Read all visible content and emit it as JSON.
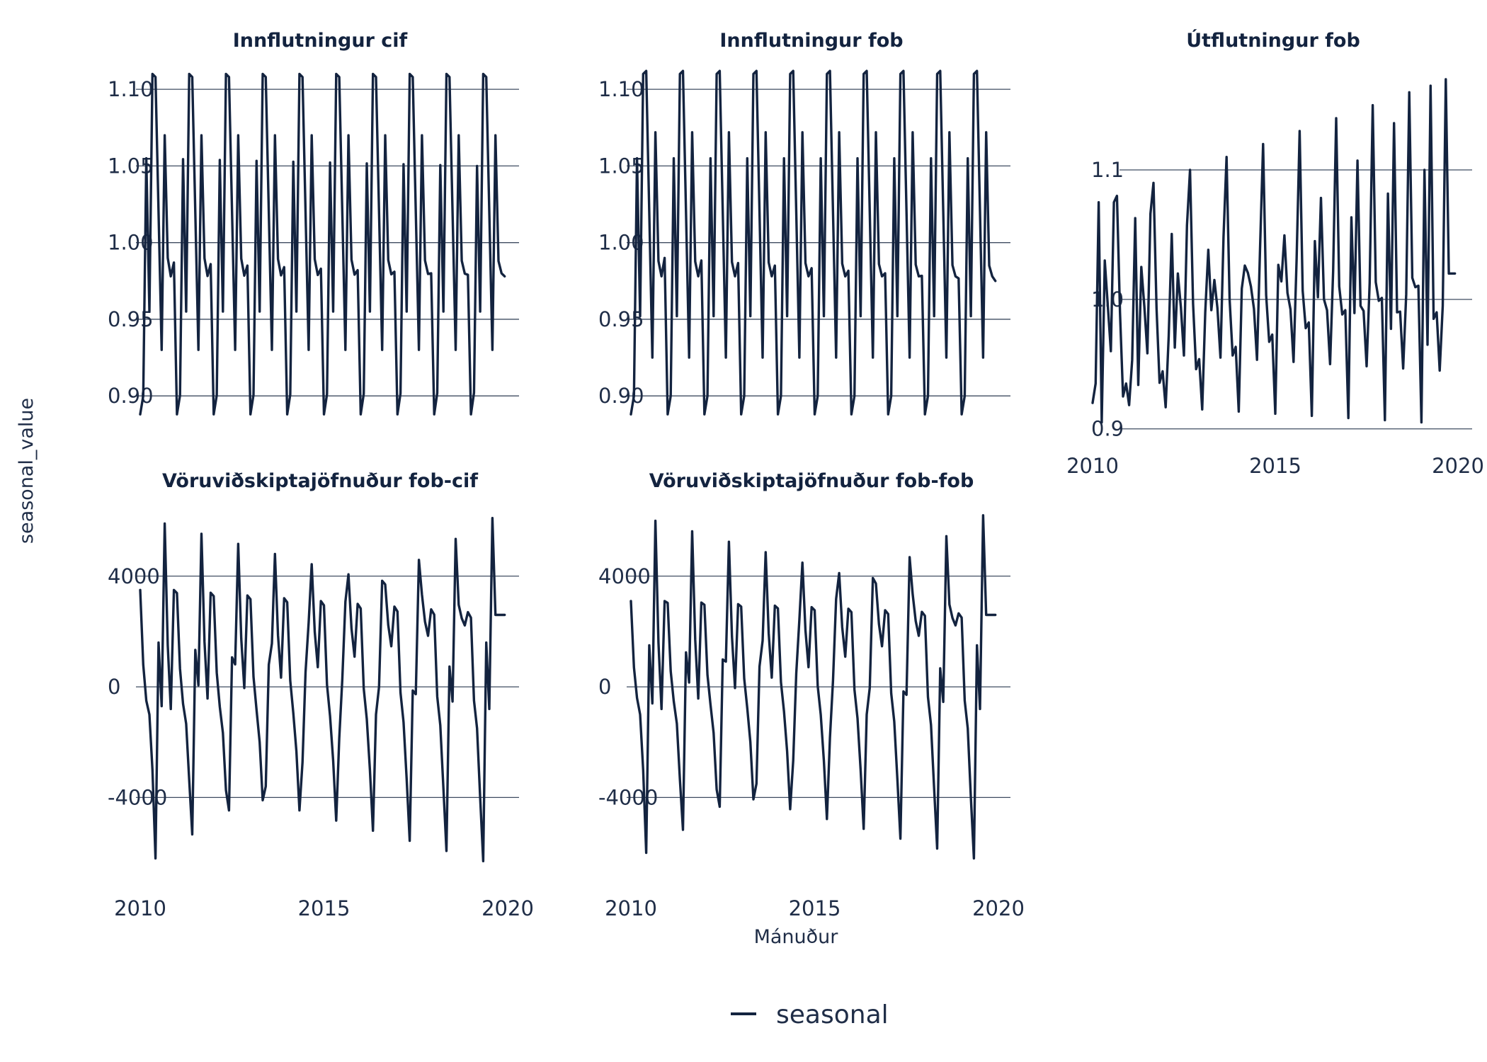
{
  "chart_data": {
    "type": "line",
    "xlabel": "Mánuður",
    "ylabel": "seasonal_value",
    "line_color": "#13233f",
    "legend": {
      "position": "bottom",
      "entries": [
        "seasonal"
      ]
    },
    "grid": "horizontal-major",
    "facets": [
      {
        "title": "Innflutningur cif",
        "xlim": [
          2010,
          2020
        ],
        "ylim": [
          0.883,
          1.113
        ],
        "yticks": [
          0.9,
          0.95,
          1.0,
          1.05,
          1.1
        ],
        "ytick_labels": [
          "0.90",
          "0.95",
          "1.00",
          "1.05",
          "1.10"
        ],
        "xticks": [
          2010,
          2015,
          2020
        ],
        "xtick_labels": [],
        "x_start": 2010.0,
        "x_step": 0.08333,
        "pattern_start": [
          0.888,
          0.9,
          1.055,
          0.955,
          1.11,
          1.108,
          1.02,
          0.93,
          1.07,
          0.99,
          0.978,
          0.987
        ],
        "pattern_end": [
          0.888,
          0.902,
          1.05,
          0.955,
          1.11,
          1.108,
          1.02,
          0.93,
          1.07,
          0.988,
          0.98,
          0.978
        ],
        "years": 10
      },
      {
        "title": "Innflutningur fob",
        "xlim": [
          2010,
          2020
        ],
        "ylim": [
          0.883,
          1.113
        ],
        "yticks": [
          0.9,
          0.95,
          1.0,
          1.05,
          1.1
        ],
        "ytick_labels": [
          "0.90",
          "0.95",
          "1.00",
          "1.05",
          "1.10"
        ],
        "xticks": [
          2010,
          2015,
          2020
        ],
        "xtick_labels": [],
        "x_start": 2010.0,
        "x_step": 0.08333,
        "pattern_start": [
          0.888,
          0.9,
          1.055,
          0.952,
          1.11,
          1.112,
          1.02,
          0.925,
          1.072,
          0.988,
          0.978,
          0.99
        ],
        "pattern_end": [
          0.888,
          0.9,
          1.055,
          0.952,
          1.11,
          1.112,
          1.02,
          0.925,
          1.072,
          0.985,
          0.978,
          0.975
        ],
        "years": 10
      },
      {
        "title": "Útflutningur fob",
        "xlim": [
          2010,
          2020
        ],
        "ylim": [
          0.89,
          1.17
        ],
        "yticks": [
          0.9,
          1.0,
          1.1
        ],
        "ytick_labels": [
          "0.9",
          "1.0",
          "1.1"
        ],
        "xticks": [
          2010,
          2015,
          2020
        ],
        "xtick_labels": [
          "2010",
          "2015",
          "2020"
        ],
        "x_start": 2010.0,
        "x_step": 0.08333,
        "pattern_start": [
          0.92,
          0.935,
          1.075,
          0.905,
          1.03,
          0.995,
          0.96,
          1.075,
          1.08,
          0.99,
          0.925,
          0.935
        ],
        "pattern_end": [
          0.905,
          1.1,
          0.965,
          1.165,
          0.985,
          0.99,
          0.945,
          0.995,
          1.17,
          1.02,
          1.02,
          1.02
        ],
        "years": 10
      },
      {
        "title": "Vöruviðskiptajöfnuður fob-cif",
        "xlim": [
          2010,
          2020
        ],
        "ylim": [
          -6600,
          6400
        ],
        "yticks": [
          -4000,
          0,
          4000
        ],
        "ytick_labels": [
          "-4000",
          "0",
          "4000"
        ],
        "xticks": [
          2010,
          2015,
          2020
        ],
        "xtick_labels": [
          "2010",
          "2015",
          "2020"
        ],
        "x_start": 2010.0,
        "x_step": 0.08333,
        "pattern_start": [
          3500,
          800,
          -500,
          -1000,
          -3000,
          -6200,
          1600,
          -700,
          5900,
          1500,
          -800,
          3500
        ],
        "pattern_end": [
          2500,
          -500,
          -1500,
          -4000,
          -6300,
          1600,
          -800,
          6100,
          2600,
          2600,
          2600,
          2600
        ],
        "years": 10
      },
      {
        "title": "Vöruviðskiptajöfnuður fob-fob",
        "xlim": [
          2010,
          2020
        ],
        "ylim": [
          -6600,
          6400
        ],
        "yticks": [
          -4000,
          0,
          4000
        ],
        "ytick_labels": [
          "-4000",
          "0",
          "4000"
        ],
        "xticks": [
          2010,
          2015,
          2020
        ],
        "xtick_labels": [
          "2010",
          "2015",
          "2020"
        ],
        "x_start": 2010.0,
        "x_step": 0.08333,
        "pattern_start": [
          3100,
          700,
          -400,
          -1000,
          -3000,
          -6000,
          1500,
          -600,
          6000,
          1600,
          -800,
          3100
        ],
        "pattern_end": [
          2500,
          -500,
          -1500,
          -4000,
          -6200,
          1500,
          -800,
          6200,
          2600,
          2600,
          2600,
          2600
        ],
        "years": 10
      }
    ]
  }
}
